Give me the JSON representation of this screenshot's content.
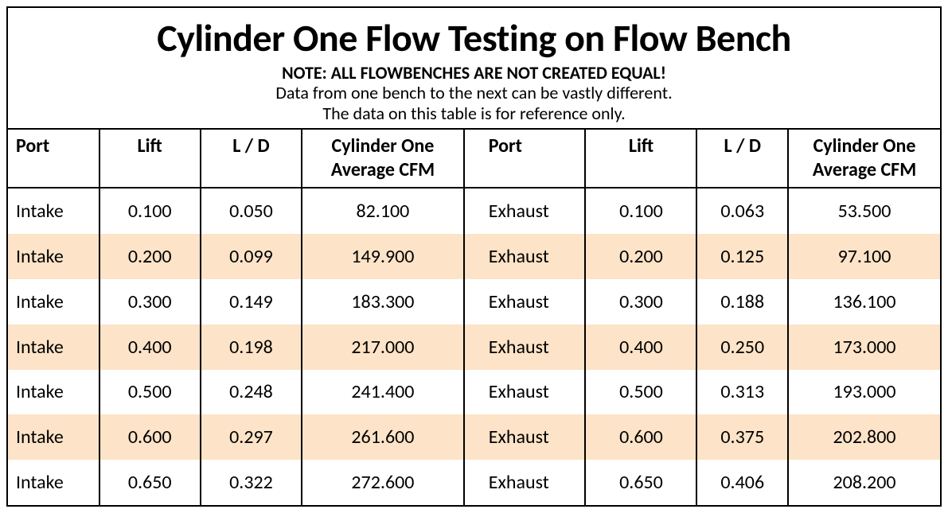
{
  "header": {
    "title": "Cylinder One Flow Testing on Flow Bench",
    "note_bold": "NOTE: ALL FLOWBENCHES ARE NOT CREATED EQUAL!",
    "note_line1": "Data from one bench to the next can be vastly different.",
    "note_line2": "The data on this table is for reference only."
  },
  "table": {
    "columns": {
      "port": "Port",
      "lift": "Lift",
      "ld": "L / D",
      "cfm": "Cylinder One Average CFM",
      "port2": "Port",
      "lift2": "Lift",
      "ld2": "L / D",
      "cfm2": "Cylinder One Average CFM"
    },
    "rows": [
      {
        "port": "Intake",
        "lift": "0.100",
        "ld": "0.050",
        "cfm": "82.100",
        "port2": "Exhaust",
        "lift2": "0.100",
        "ld2": "0.063",
        "cfm2": "53.500"
      },
      {
        "port": "Intake",
        "lift": "0.200",
        "ld": "0.099",
        "cfm": "149.900",
        "port2": "Exhaust",
        "lift2": "0.200",
        "ld2": "0.125",
        "cfm2": "97.100"
      },
      {
        "port": "Intake",
        "lift": "0.300",
        "ld": "0.149",
        "cfm": "183.300",
        "port2": "Exhaust",
        "lift2": "0.300",
        "ld2": "0.188",
        "cfm2": "136.100"
      },
      {
        "port": "Intake",
        "lift": "0.400",
        "ld": "0.198",
        "cfm": "217.000",
        "port2": "Exhaust",
        "lift2": "0.400",
        "ld2": "0.250",
        "cfm2": "173.000"
      },
      {
        "port": "Intake",
        "lift": "0.500",
        "ld": "0.248",
        "cfm": "241.400",
        "port2": "Exhaust",
        "lift2": "0.500",
        "ld2": "0.313",
        "cfm2": "193.000"
      },
      {
        "port": "Intake",
        "lift": "0.600",
        "ld": "0.297",
        "cfm": "261.600",
        "port2": "Exhaust",
        "lift2": "0.600",
        "ld2": "0.375",
        "cfm2": "202.800"
      },
      {
        "port": "Intake",
        "lift": "0.650",
        "ld": "0.322",
        "cfm": "272.600",
        "port2": "Exhaust",
        "lift2": "0.650",
        "ld2": "0.406",
        "cfm2": "208.200"
      }
    ],
    "stripe_color": "#fde3c7",
    "border_color": "#000000",
    "background_color": "#ffffff",
    "header_fontsize": 24,
    "cell_fontsize": 24
  }
}
